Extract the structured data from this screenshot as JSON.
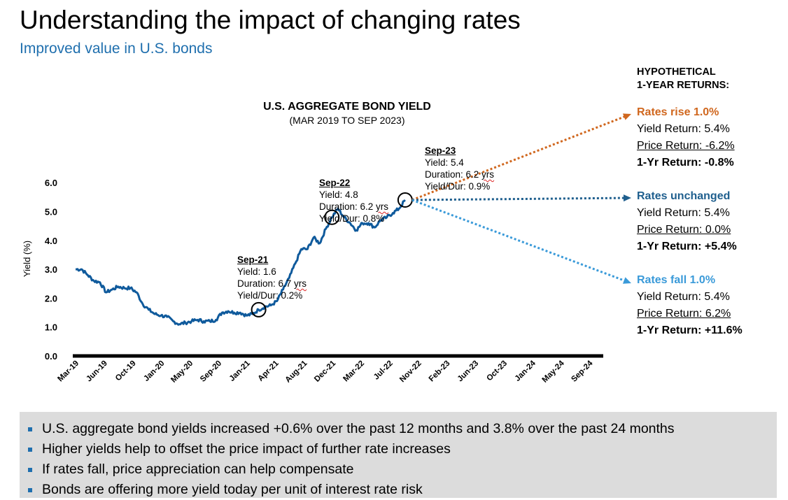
{
  "page": {
    "title": "Understanding the impact of changing rates",
    "subtitle": "Improved value in U.S. bonds"
  },
  "chart_data": {
    "type": "line",
    "title": "U.S. AGGREGATE BOND YIELD",
    "subtitle": "(MAR 2019 TO SEP 2023)",
    "ylabel": "Yield (%)",
    "xlabel": "",
    "ylim": [
      0,
      6
    ],
    "yticks": [
      "0.0",
      "1.0",
      "2.0",
      "3.0",
      "4.0",
      "5.0",
      "6.0"
    ],
    "xticks": [
      "Mar-19",
      "Jun-19",
      "Oct-19",
      "Jan-20",
      "May-20",
      "Sep-20",
      "Jan-21",
      "Apr-21",
      "Aug-21",
      "Dec-21",
      "Mar-22",
      "Jul-22",
      "Nov-22",
      "Feb-23",
      "Jun-23",
      "Oct-23",
      "Jan-24",
      "May-24",
      "Sep-24"
    ],
    "grid": false,
    "line_color": "#0f5a9c",
    "series": [
      {
        "x": [
          "2019-03",
          "2019-04",
          "2019-05",
          "2019-06",
          "2019-07",
          "2019-08",
          "2019-09",
          "2019-10",
          "2019-11",
          "2019-12",
          "2020-01",
          "2020-02",
          "2020-03",
          "2020-04",
          "2020-05",
          "2020-06",
          "2020-07",
          "2020-08",
          "2020-09",
          "2020-10",
          "2020-11",
          "2020-12",
          "2021-01",
          "2021-02",
          "2021-03",
          "2021-04",
          "2021-05",
          "2021-06",
          "2021-07",
          "2021-08",
          "2021-09",
          "2021-10",
          "2021-11",
          "2021-12",
          "2022-01",
          "2022-02",
          "2022-03",
          "2022-04",
          "2022-05",
          "2022-06",
          "2022-07",
          "2022-08",
          "2022-09",
          "2022-10",
          "2022-11",
          "2022-12",
          "2023-01",
          "2023-02",
          "2023-03",
          "2023-04",
          "2023-05",
          "2023-06",
          "2023-07",
          "2023-08",
          "2023-09"
        ],
        "values": [
          3.0,
          3.0,
          2.8,
          2.6,
          2.55,
          2.2,
          2.3,
          2.4,
          2.35,
          2.35,
          2.2,
          1.8,
          1.6,
          1.45,
          1.4,
          1.35,
          1.2,
          1.1,
          1.15,
          1.2,
          1.25,
          1.2,
          1.2,
          1.25,
          1.5,
          1.55,
          1.5,
          1.5,
          1.4,
          1.45,
          1.6,
          1.7,
          1.75,
          1.9,
          2.3,
          2.7,
          3.2,
          3.7,
          3.7,
          4.1,
          3.9,
          4.4,
          4.8,
          5.1,
          4.8,
          4.6,
          4.35,
          4.6,
          4.6,
          4.45,
          4.7,
          4.8,
          4.95,
          5.1,
          5.4
        ]
      }
    ],
    "annotations": [
      {
        "date": "2021-09",
        "y": 1.6,
        "heading": "Sep-21",
        "yield_text": "Yield: 1.6",
        "dur_label": "Duration: 6.7 ",
        "dur_unit": "yrs",
        "ratio": "Yield/Dur: 0.2%"
      },
      {
        "date": "2022-09",
        "y": 4.8,
        "heading": "Sep-22",
        "yield_text": "Yield: 4.8",
        "dur_label": "Duration: 6.2 ",
        "dur_unit": "yrs",
        "ratio": "Yield/Dur: 0.8%"
      },
      {
        "date": "2023-09",
        "y": 5.4,
        "heading": "Sep-23",
        "yield_text": "Yield: 5.4",
        "dur_label": "Duration: 6.2 ",
        "dur_unit": "yrs",
        "ratio": "Yield/Dur: 0.9%"
      }
    ],
    "arrow_colors": {
      "rise": "#d0671e",
      "unchanged": "#1f5f8e",
      "fall": "#3a9ad9"
    }
  },
  "returns": {
    "heading_line1": "HYPOTHETICAL",
    "heading_line2": "1-YEAR RETURNS:",
    "scenarios": [
      {
        "name": "Rates rise 1.0%",
        "color": "#d0671e",
        "yield": "Yield Return: 5.4%",
        "price": "Price Return: -6.2%",
        "total": "1-Yr Return: -0.8%"
      },
      {
        "name": "Rates unchanged",
        "color": "#1f5f8e",
        "yield": "Yield Return: 5.4%",
        "price": "Price Return: 0.0%",
        "total": "1-Yr Return: +5.4%"
      },
      {
        "name": "Rates fall 1.0%",
        "color": "#3a9ad9",
        "yield": "Yield Return: 5.4%",
        "price": "Price Return: 6.2%",
        "total": "1-Yr Return: +11.6%"
      }
    ]
  },
  "bullets": [
    "U.S. aggregate bond yields increased +0.6% over the past 12 months and 3.8% over the past 24 months",
    "Higher yields help to offset the price impact of further rate increases",
    "If rates fall, price appreciation can help compensate",
    "Bonds are offering more yield today per unit of interest rate risk"
  ]
}
